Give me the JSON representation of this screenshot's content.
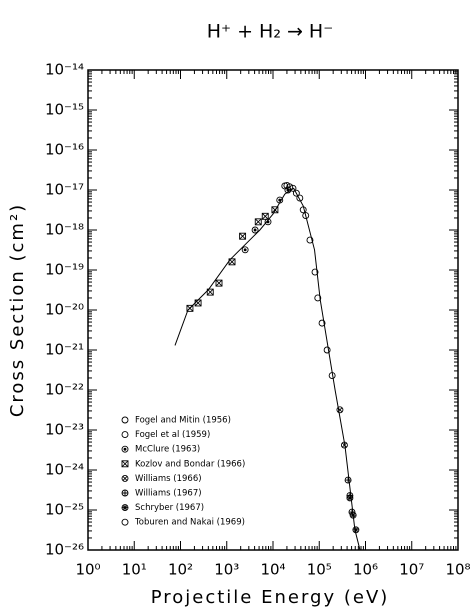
{
  "chart_data": {
    "type": "scatter",
    "title": "H⁺ + H₂ → H⁻",
    "x_label": "Projectile Energy (eV)",
    "y_label": "Cross Section (cm²)",
    "xscale": "log",
    "yscale": "log",
    "xlim": [
      1,
      100000000
    ],
    "ylim": [
      1e-26,
      1e-14
    ],
    "xticks": [
      {
        "value": 1,
        "label": "10⁰"
      },
      {
        "value": 10,
        "label": "10¹"
      },
      {
        "value": 100,
        "label": "10²"
      },
      {
        "value": 1000,
        "label": "10³"
      },
      {
        "value": 10000,
        "label": "10⁴"
      },
      {
        "value": 100000,
        "label": "10⁵"
      },
      {
        "value": 1000000,
        "label": "10⁶"
      },
      {
        "value": 10000000,
        "label": "10⁷"
      },
      {
        "value": 100000000,
        "label": "10⁸"
      }
    ],
    "yticks": [
      {
        "value": 1e-26,
        "label": "10⁻²⁶"
      },
      {
        "value": 1e-25,
        "label": "10⁻²⁵"
      },
      {
        "value": 1e-24,
        "label": "10⁻²⁴"
      },
      {
        "value": 1e-23,
        "label": "10⁻²³"
      },
      {
        "value": 1e-22,
        "label": "10⁻²²"
      },
      {
        "value": 1e-21,
        "label": "10⁻²¹"
      },
      {
        "value": 1e-20,
        "label": "10⁻²⁰"
      },
      {
        "value": 1e-19,
        "label": "10⁻¹⁹"
      },
      {
        "value": 1e-18,
        "label": "10⁻¹⁸"
      },
      {
        "value": 1e-17,
        "label": "10⁻¹⁷"
      },
      {
        "value": 1e-16,
        "label": "10⁻¹⁶"
      },
      {
        "value": 1e-15,
        "label": "10⁻¹⁵"
      },
      {
        "value": 1e-14,
        "label": "10⁻¹⁴"
      }
    ],
    "legend": "lower-left",
    "color": "#000000",
    "curve": {
      "x": [
        76,
        145,
        400,
        1170,
        5200,
        10000,
        18000,
        28000,
        45000,
        79000,
        105000,
        220000,
        360000,
        590000,
        760000
      ],
      "y": [
        1.3e-21,
        1e-20,
        3.2e-20,
        1.8e-19,
        1e-18,
        2.5e-18,
        7.9e-18,
        1.1e-17,
        4e-18,
        3.2e-19,
        1.8e-20,
        1e-22,
        4e-24,
        3.2e-26,
        1e-26
      ]
    },
    "series": [
      {
        "name": "Fogel and Mitin (1956)",
        "marker": "circle",
        "x": [
          18000,
          27000,
          38000,
          51000,
          63000,
          81000
        ],
        "values": [
          1.26e-17,
          1.1e-17,
          6.3e-18,
          2.3e-18,
          5.6e-19,
          8.9e-20
        ]
      },
      {
        "name": "Fogel et al (1959)",
        "marker": "circle",
        "x": [
          93000,
          115000,
          148000,
          190000
        ],
        "values": [
          2e-20,
          4.7e-21,
          1e-21,
          2.3e-22
        ]
      },
      {
        "name": "McClure (1963)",
        "marker": "circle-dot",
        "x": [
          2500,
          4100,
          7800,
          14000,
          21000
        ],
        "values": [
          3.2e-19,
          1e-18,
          1.6e-18,
          5.6e-18,
          1e-17
        ]
      },
      {
        "name": "Kozlov and Bondar (1966)",
        "marker": "square-x",
        "x": [
          160,
          240,
          440,
          680,
          1300,
          2200,
          4800,
          6800,
          11000
        ],
        "values": [
          1.1e-20,
          1.5e-20,
          2.8e-20,
          4.7e-20,
          1.6e-19,
          7e-19,
          1.6e-18,
          2.2e-18,
          3.2e-18
        ]
      },
      {
        "name": "Williams (1966)",
        "marker": "circle-x",
        "x": [
          280000,
          350000
        ],
        "values": [
          3.2e-23,
          4.2e-24
        ]
      },
      {
        "name": "Williams (1967)",
        "marker": "circle-plus",
        "x": [
          420000,
          460000,
          510000
        ],
        "values": [
          5.6e-25,
          2.3e-25,
          8.9e-26
        ]
      },
      {
        "name": "Schryber (1967)",
        "marker": "circle-star",
        "x": [
          460000,
          540000,
          620000
        ],
        "values": [
          2e-25,
          7.4e-26,
          3.2e-26
        ]
      },
      {
        "name": "Toburen and Nakai (1969)",
        "marker": "circle",
        "x": [
          20000,
          23000,
          32000,
          45000
        ],
        "values": [
          1.3e-17,
          1.2e-17,
          8.3e-18,
          3.2e-18
        ]
      }
    ]
  }
}
